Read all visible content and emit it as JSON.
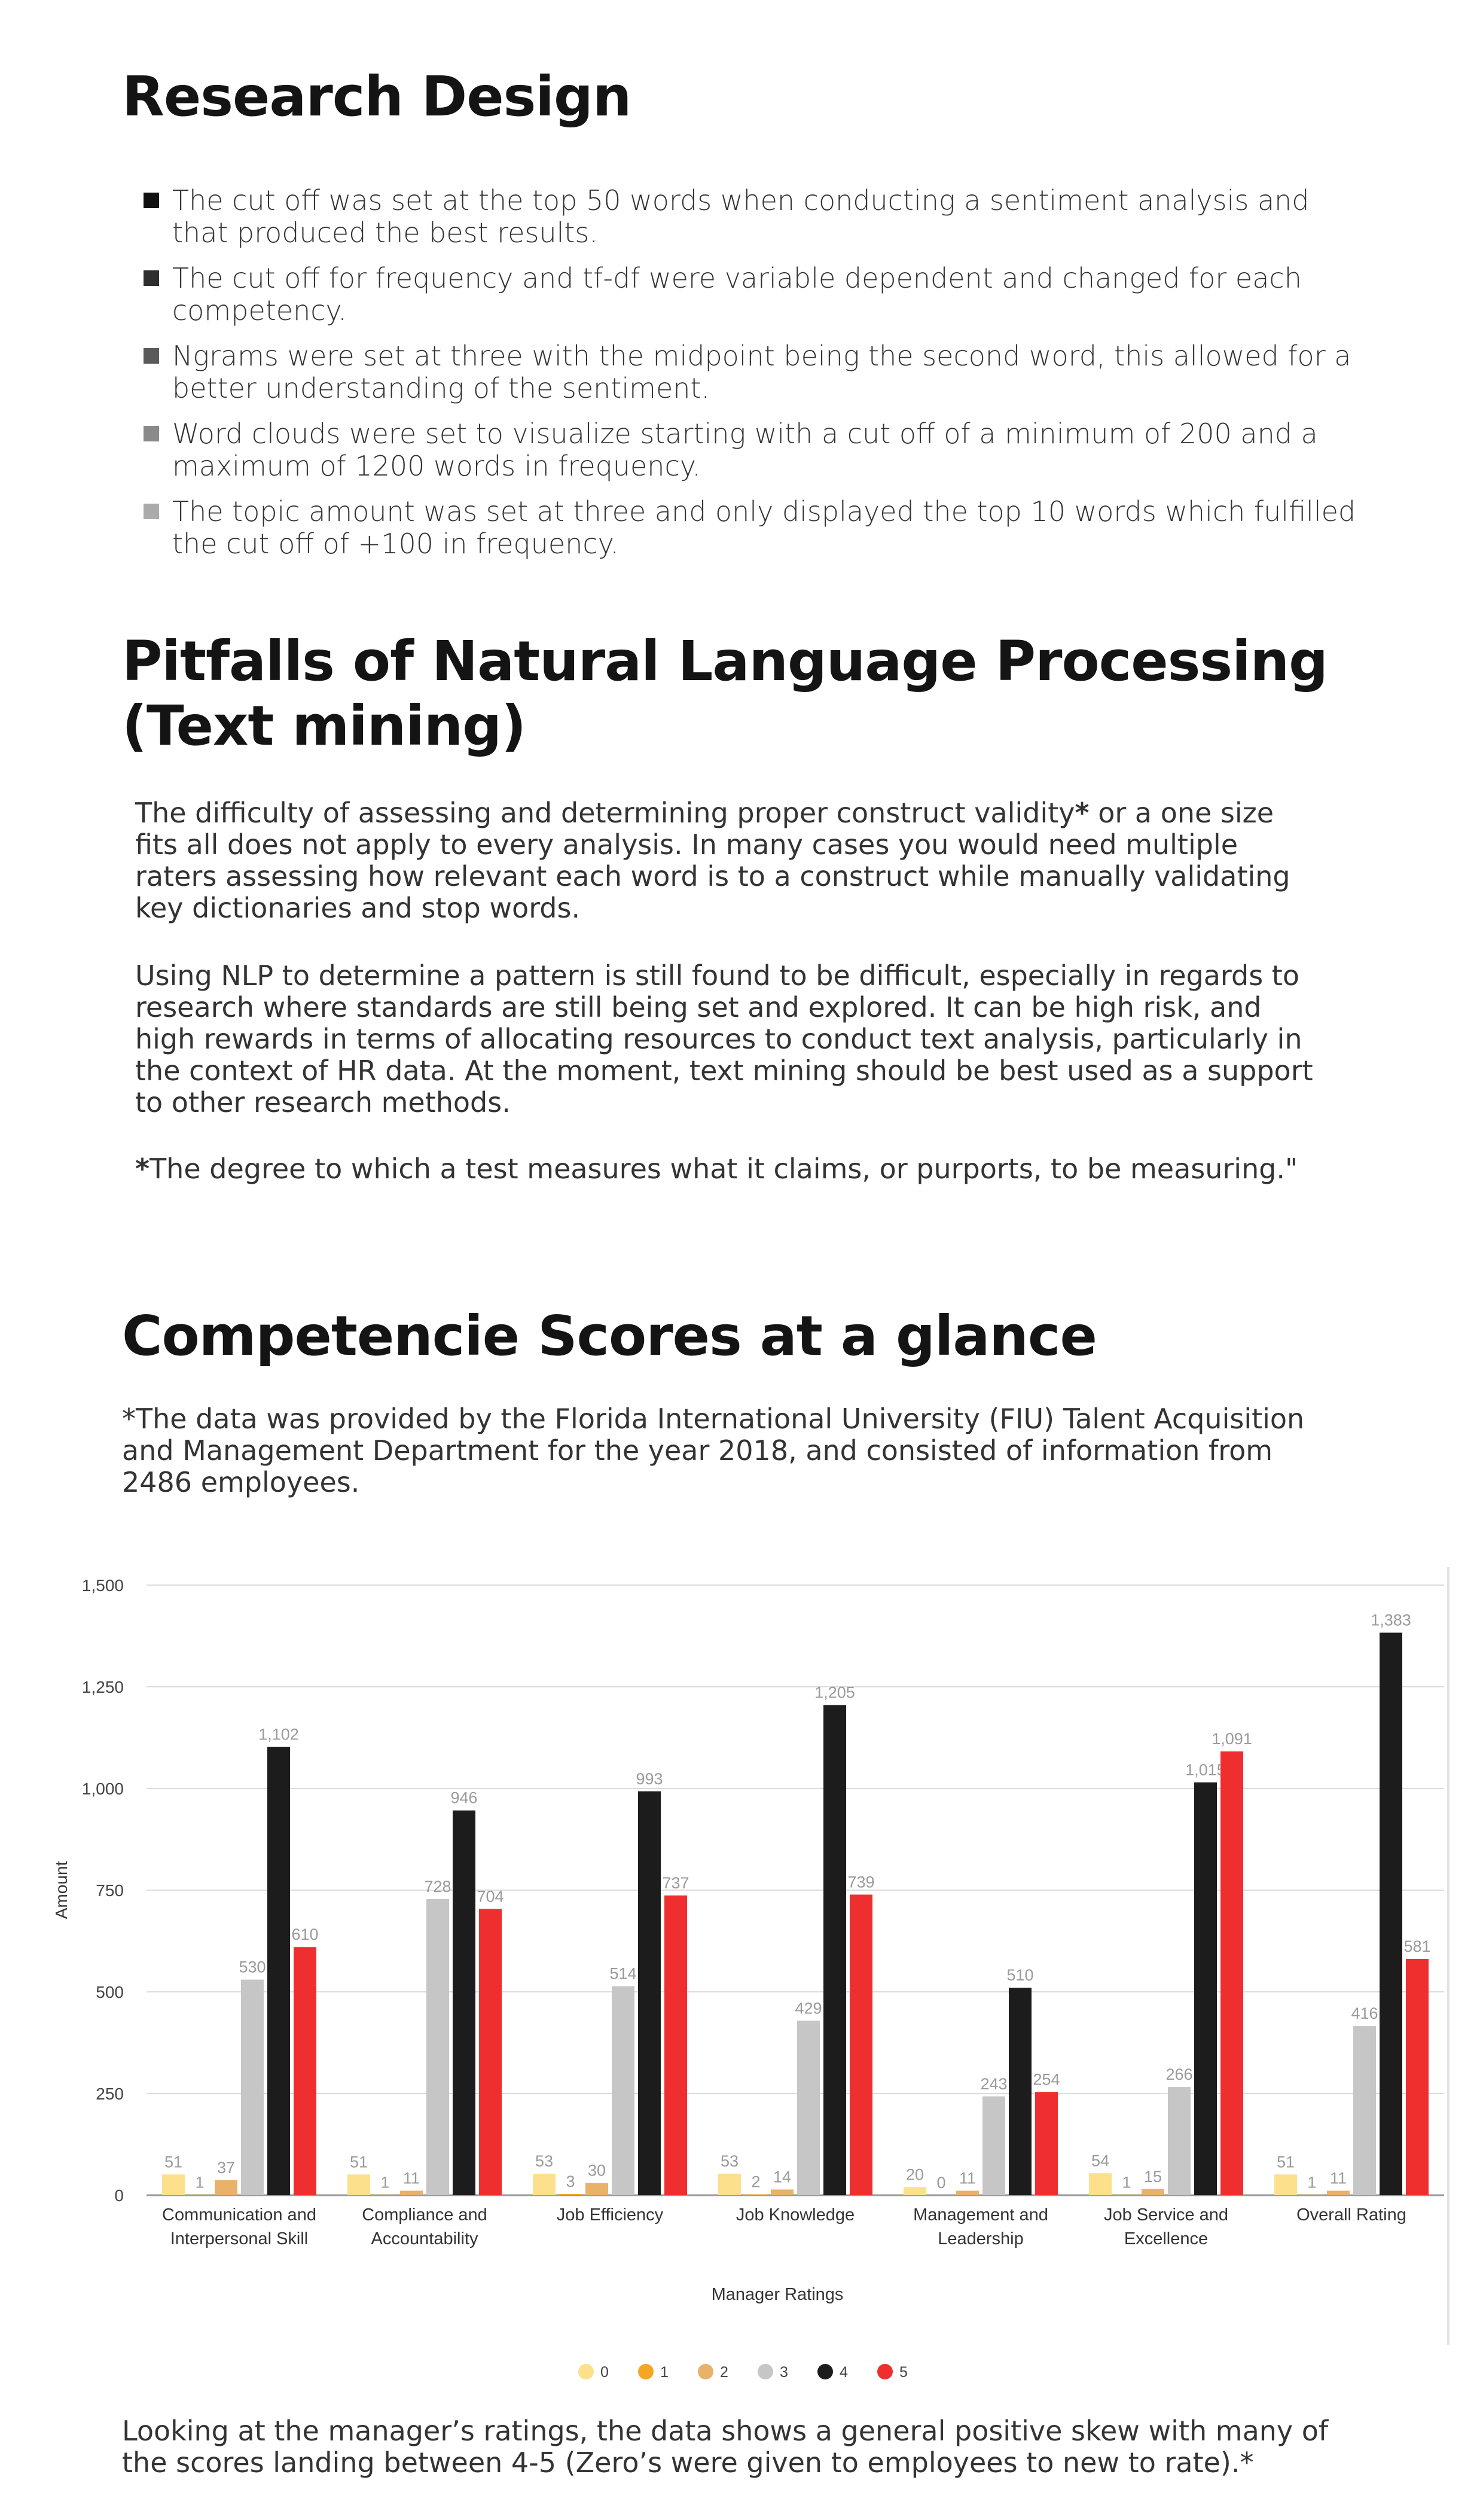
{
  "research_design": {
    "title": "Research Design",
    "bullets": [
      {
        "text": "The cut off was set at the top 50 words when conducting a sentiment analysis and that produced the best results.",
        "color": "#111111"
      },
      {
        "text": "The cut off for frequency and tf-df were variable dependent and changed for each competency.",
        "color": "#2e2e2e"
      },
      {
        "text": "Ngrams were set at three with the midpoint being the second word, this allowed for a better understanding of the sentiment.",
        "color": "#5a5a5a"
      },
      {
        "text": "Word clouds were set to visualize starting with a cut off of a minimum of 200 and a maximum of 1200 words in frequency.",
        "color": "#8a8a8a"
      },
      {
        "text": "The topic amount was set at three and only displayed the top 10 words which fulfilled the cut off of +100 in frequency.",
        "color": "#aaaaaa"
      }
    ]
  },
  "pitfalls": {
    "title": "Pitfalls of Natural Language Processing (Text mining)",
    "p1_before": "The difficulty of assessing and determining proper construct validity",
    "p1_star": "*",
    "p1_after": " or a one size fits all does not apply to every analysis. In many cases you would need multiple raters assessing how relevant each word is to a construct while manually validating key dictionaries and stop words.",
    "p2": "Using NLP to determine a pattern is still found to be difficult, especially in regards to research where standards are still being set and explored. It can be high risk, and high rewards in terms of allocating resources to conduct text analysis, particularly in the context of HR data. At the moment, text mining should be best used as a support to other research methods.",
    "footnote_star": "*",
    "footnote": "The degree to which a test measures what it claims, or purports, to be measuring.\""
  },
  "competencies": {
    "title": "Competencie Scores at a glance",
    "note": "*The data was provided by the Florida International University (FIU) Talent Acquisition and Management Department for the year 2018, and consisted of information from 2486 employees.",
    "footer": "Looking at the manager’s ratings, the data shows a general positive skew with many of the scores landing between 4-5 (Zero’s were given to employees to new to rate).*"
  },
  "chart_data": {
    "type": "bar",
    "xlabel": "Manager Ratings",
    "ylabel": "Amount",
    "ylim": [
      0,
      1500
    ],
    "yticks": [
      0,
      250,
      500,
      750,
      1000,
      1250,
      1500
    ],
    "ytick_labels": [
      "0",
      "250",
      "500",
      "750",
      "1,000",
      "1,250",
      "1,500"
    ],
    "grid": true,
    "legend_position": "bottom",
    "categories": [
      [
        "Communication and",
        "Interpersonal Skill"
      ],
      [
        "Compliance and",
        "Accountability"
      ],
      [
        "Job Efficiency"
      ],
      [
        "Job Knowledge"
      ],
      [
        "Management and",
        "Leadership"
      ],
      [
        "Job Service and",
        "Excellence"
      ],
      [
        "Overall Rating"
      ]
    ],
    "series": [
      {
        "name": "0",
        "color": "#fce08c",
        "values": [
          51,
          51,
          53,
          53,
          20,
          54,
          51
        ],
        "labels": [
          "51",
          "51",
          "53",
          "53",
          "20",
          "54",
          "51"
        ]
      },
      {
        "name": "1",
        "color": "#f5a623",
        "values": [
          1,
          1,
          3,
          2,
          0,
          1,
          1
        ],
        "labels": [
          "1",
          "1",
          "3",
          "2",
          "0",
          "1",
          "1"
        ]
      },
      {
        "name": "2",
        "color": "#e8b26a",
        "values": [
          37,
          11,
          30,
          14,
          11,
          15,
          11
        ],
        "labels": [
          "37",
          "11",
          "30",
          "14",
          "11",
          "15",
          "11"
        ]
      },
      {
        "name": "3",
        "color": "#c6c6c6",
        "values": [
          530,
          728,
          514,
          429,
          243,
          266,
          416
        ],
        "labels": [
          "530",
          "728",
          "514",
          "429",
          "243",
          "266",
          "416"
        ]
      },
      {
        "name": "4",
        "color": "#1c1c1c",
        "values": [
          1102,
          946,
          993,
          1205,
          510,
          1015,
          1383
        ],
        "labels": [
          "1,102",
          "946",
          "993",
          "1,205",
          "510",
          "1,015",
          "1,383"
        ]
      },
      {
        "name": "5",
        "color": "#ef2f2f",
        "values": [
          610,
          704,
          737,
          739,
          254,
          1091,
          581
        ],
        "labels": [
          "610",
          "704",
          "737",
          "739",
          "254",
          "1,091",
          "581"
        ]
      }
    ]
  }
}
